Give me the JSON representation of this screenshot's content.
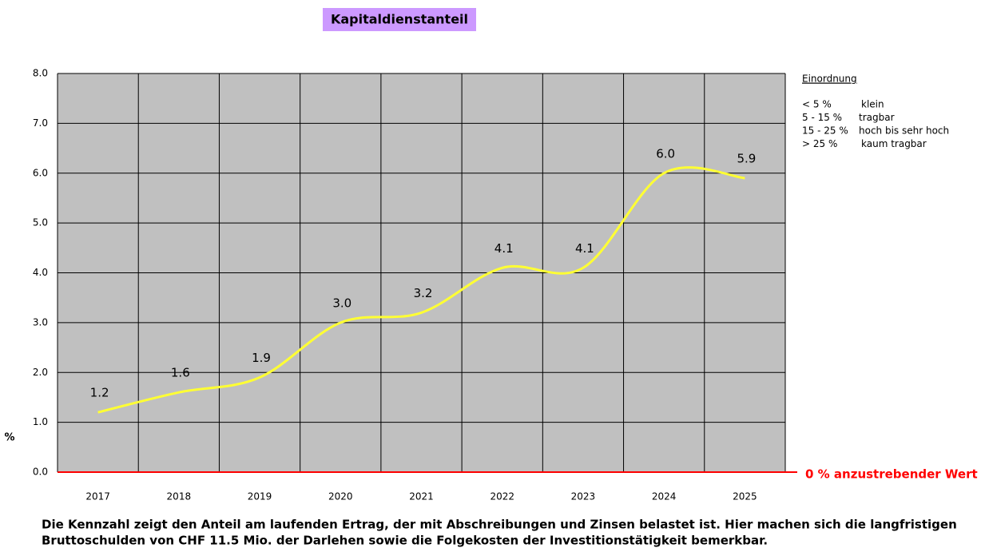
{
  "chart_data": {
    "type": "line",
    "title": "Kapitaldienstanteil",
    "y_label": "%",
    "categories": [
      "2017",
      "2018",
      "2019",
      "2020",
      "2021",
      "2022",
      "2023",
      "2024",
      "2025"
    ],
    "values": [
      1.2,
      1.6,
      1.9,
      3,
      3.2,
      4.1,
      4.1,
      6,
      5.9
    ],
    "value_labels": [
      "1.2",
      "1.6",
      "1.9",
      "3.0",
      "3.2",
      "4.1",
      "4.1",
      "6.0",
      "5.9"
    ],
    "color": "#ffff33",
    "ylim": [
      0,
      8
    ],
    "yticks": [
      {
        "value": 0,
        "label": "0.0"
      },
      {
        "value": 1,
        "label": "1.0"
      },
      {
        "value": 2,
        "label": "2.0"
      },
      {
        "value": 3,
        "label": "3.0"
      },
      {
        "value": 4,
        "label": "4.0"
      },
      {
        "value": 5,
        "label": "5.0"
      },
      {
        "value": 6,
        "label": "6.0"
      },
      {
        "value": 7,
        "label": "7.0"
      },
      {
        "value": 8,
        "label": "8.0"
      }
    ],
    "grid": true,
    "reference_line": {
      "value": 0,
      "label": "0 % anzustrebender Wert",
      "color": "#ff0000"
    },
    "notes": {
      "title": "Einordnung",
      "rows": [
        [
          "< 5 %",
          "klein"
        ],
        [
          "5 - 15 %",
          "tragbar"
        ],
        [
          "15 - 25 %",
          "hoch bis sehr hoch"
        ],
        [
          "> 25 %",
          "kaum tragbar"
        ]
      ]
    },
    "caption": [
      "Die Kennzahl zeigt den Anteil am laufenden Ertrag, der mit Abschreibungen und Zinsen belastet ist. Hier machen sich die langfristigen",
      "Bruttoschulden von CHF 11.5 Mio. der Darlehen sowie die Folgekosten der Investitionstätigkeit bemerkbar."
    ]
  }
}
